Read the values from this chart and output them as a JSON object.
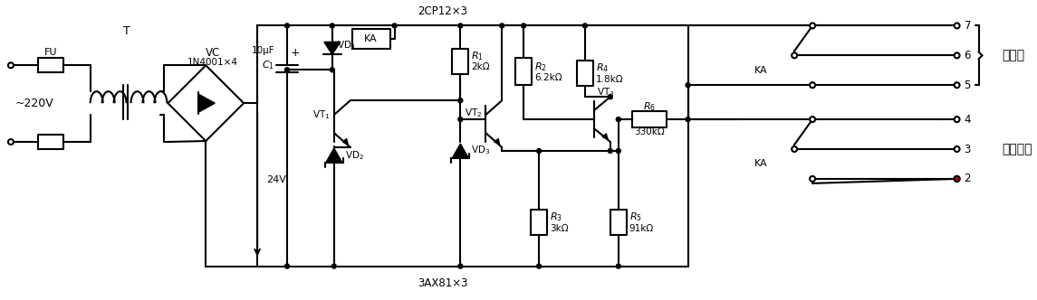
{
  "fig_w": 11.45,
  "fig_h": 3.32,
  "labels": {
    "FU": "FU",
    "T": "T",
    "VC": "VC",
    "VC_sub": "1N4001×4",
    "v220": "~220V",
    "v24": "24V",
    "cap_val": "10μF",
    "diode_ser": "2CP12×3",
    "trans_ser": "3AX81×3",
    "KA": "KA",
    "VD1": "VD₁",
    "VD2": "VD₂",
    "VD3": "VD₃",
    "VT1": "VT₁",
    "VT2": "VT₂",
    "VT3": "VT₃",
    "R1": "$R_1$",
    "R1v": "2kΩ",
    "R2": "$R_2$",
    "R2v": "6.2kΩ",
    "R3": "$R_3$",
    "R3v": "3kΩ",
    "R4": "$R_4$",
    "R4v": "1.8kΩ",
    "R5": "$R_5$",
    "R5v": "91kΩ",
    "R6": "$R_6$",
    "R6v": "330kΩ",
    "jie": "接电极",
    "kong": "控制回路",
    "C1": "$C_1$",
    "plus": "+"
  }
}
